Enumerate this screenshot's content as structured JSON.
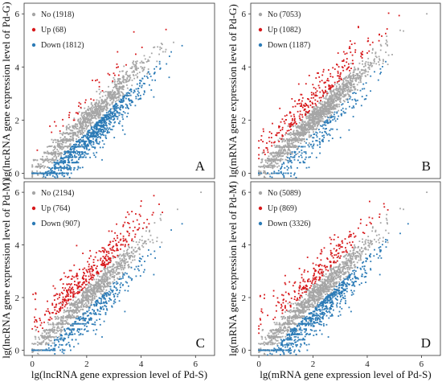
{
  "chart_data": [
    {
      "type": "scatter",
      "panel_label": "A",
      "xlabel": "",
      "ylabel": "lg(lncRNA gene expression level of Pd-G)",
      "xlim": [
        -0.3,
        6.7
      ],
      "ylim": [
        -0.2,
        6.4
      ],
      "yticks": [
        0,
        2,
        4,
        6
      ],
      "xticks": [],
      "legend_position": "top-left",
      "legend": [
        {
          "label": "No (1918)",
          "color": "#a6a6a6"
        },
        {
          "label": "Up (68)",
          "color": "#d7191c"
        },
        {
          "label": "Down (1812)",
          "color": "#2c7bb6"
        }
      ],
      "series": [
        {
          "name": "No",
          "color": "#a6a6a6",
          "count": 1918
        },
        {
          "name": "Up",
          "color": "#d7191c",
          "count": 68
        },
        {
          "name": "Down",
          "color": "#2c7bb6",
          "count": 1812
        }
      ]
    },
    {
      "type": "scatter",
      "panel_label": "B",
      "xlabel": "",
      "ylabel": "lg(mRNA gene expression level of Pd-G)",
      "xlim": [
        -0.3,
        6.7
      ],
      "ylim": [
        -0.2,
        6.4
      ],
      "yticks": [
        0,
        2,
        4,
        6
      ],
      "xticks": [],
      "legend_position": "top-left",
      "legend": [
        {
          "label": "No (7053)",
          "color": "#a6a6a6"
        },
        {
          "label": "Up (1082)",
          "color": "#d7191c"
        },
        {
          "label": "Down (1187)",
          "color": "#2c7bb6"
        }
      ],
      "series": [
        {
          "name": "No",
          "color": "#a6a6a6",
          "count": 7053
        },
        {
          "name": "Up",
          "color": "#d7191c",
          "count": 1082
        },
        {
          "name": "Down",
          "color": "#2c7bb6",
          "count": 1187
        }
      ]
    },
    {
      "type": "scatter",
      "panel_label": "C",
      "xlabel": "lg(lncRNA gene expression level of Pd-S)",
      "ylabel": "lg(lncRNA gene expression level of Pd-M)",
      "xlim": [
        -0.3,
        6.7
      ],
      "ylim": [
        -0.2,
        6.4
      ],
      "yticks": [
        0,
        2,
        4,
        6
      ],
      "xticks": [
        0,
        2,
        4,
        6
      ],
      "legend_position": "top-left",
      "legend": [
        {
          "label": "No (2194)",
          "color": "#a6a6a6"
        },
        {
          "label": "Up (764)",
          "color": "#d7191c"
        },
        {
          "label": "Down (907)",
          "color": "#2c7bb6"
        }
      ],
      "series": [
        {
          "name": "No",
          "color": "#a6a6a6",
          "count": 2194
        },
        {
          "name": "Up",
          "color": "#d7191c",
          "count": 764
        },
        {
          "name": "Down",
          "color": "#2c7bb6",
          "count": 907
        }
      ]
    },
    {
      "type": "scatter",
      "panel_label": "D",
      "xlabel": "lg(mRNA gene expression level of Pd-S)",
      "ylabel": "lg(mRNA gene expression level of Pd-M)",
      "xlim": [
        -0.3,
        6.7
      ],
      "ylim": [
        -0.2,
        6.4
      ],
      "yticks": [
        0,
        2,
        4,
        6
      ],
      "xticks": [
        0,
        2,
        4,
        6
      ],
      "legend_position": "top-left",
      "legend": [
        {
          "label": "No (5089)",
          "color": "#a6a6a6"
        },
        {
          "label": "Up (869)",
          "color": "#d7191c"
        },
        {
          "label": "Down (3326)",
          "color": "#2c7bb6"
        }
      ],
      "series": [
        {
          "name": "No",
          "color": "#a6a6a6",
          "count": 5089
        },
        {
          "name": "Up",
          "color": "#d7191c",
          "count": 869
        },
        {
          "name": "Down",
          "color": "#2c7bb6",
          "count": 3326
        }
      ]
    }
  ]
}
